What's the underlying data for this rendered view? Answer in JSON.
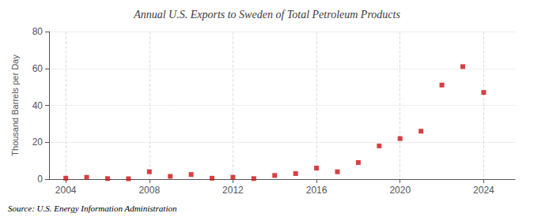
{
  "chart_data": {
    "type": "scatter",
    "title": "Annual U.S. Exports to Sweden of Total Petroleum Products",
    "y_label": "Thousand Barrels per Day",
    "annotation": "Source: U.S. Energy Information Administration",
    "x": [
      2004,
      2005,
      2006,
      2007,
      2008,
      2009,
      2010,
      2011,
      2012,
      2013,
      2014,
      2015,
      2016,
      2017,
      2018,
      2019,
      2020,
      2021,
      2022,
      2023,
      2024
    ],
    "values": [
      0.5,
      1.0,
      0.3,
      0.2,
      4.0,
      1.5,
      2.5,
      0.5,
      1.0,
      0.3,
      2.0,
      3.0,
      6.0,
      4.0,
      9.0,
      18.0,
      22.0,
      26.0,
      51.0,
      61.0,
      47.0
    ],
    "color": "#cc1111",
    "marker": "square",
    "xlim": [
      2003.2,
      2025.5
    ],
    "xticks": [
      2004,
      2008,
      2012,
      2016,
      2020,
      2024
    ],
    "ylim": [
      0,
      80
    ],
    "yticks": [
      0,
      20,
      40,
      60,
      80
    ],
    "grid": true
  }
}
